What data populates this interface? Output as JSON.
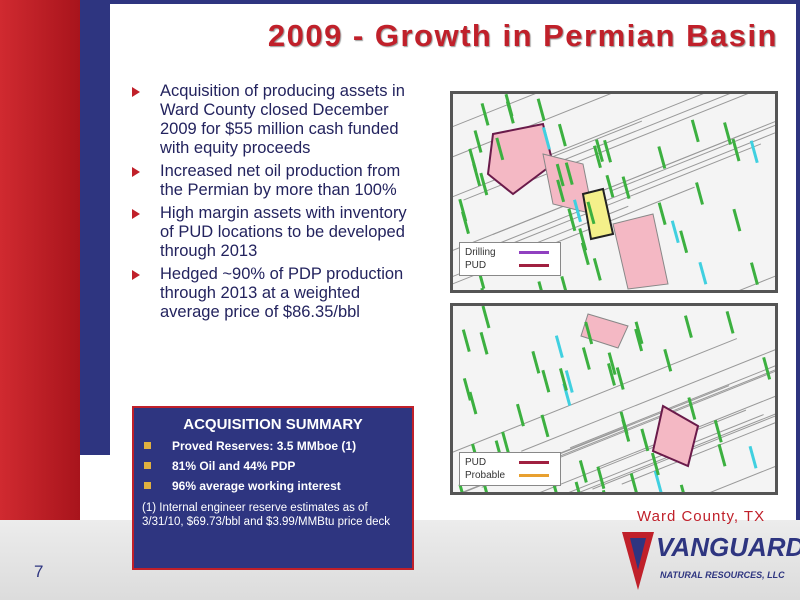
{
  "title": "2009 - Growth in Permian Basin",
  "bullets": [
    "Acquisition of producing assets in Ward County closed December 2009 for $55 million cash funded with equity proceeds",
    "Increased net oil production from the Permian by more than 100%",
    "High margin assets with inventory of PUD locations to be developed through 2013",
    "Hedged ~90% of PDP production through 2013 at a weighted average price of $86.35/bbl"
  ],
  "maps": [
    {
      "legend": [
        "Drilling",
        "PUD"
      ]
    },
    {
      "legend": [
        "PUD",
        "Probable"
      ]
    }
  ],
  "summary": {
    "title": "ACQUISITION SUMMARY",
    "items": [
      "Proved Reserves: 3.5 MMboe (1)",
      "81% Oil and 44% PDP",
      "96% average working interest"
    ],
    "note": "(1) Internal engineer reserve estimates as of 3/31/10, $69.73/bbl and $3.99/MMBtu price deck"
  },
  "caption": "Ward County, TX",
  "page_number": 7,
  "logo": {
    "name": "VANGUARD",
    "subtitle": "NATURAL RESOURCES, LLC"
  }
}
